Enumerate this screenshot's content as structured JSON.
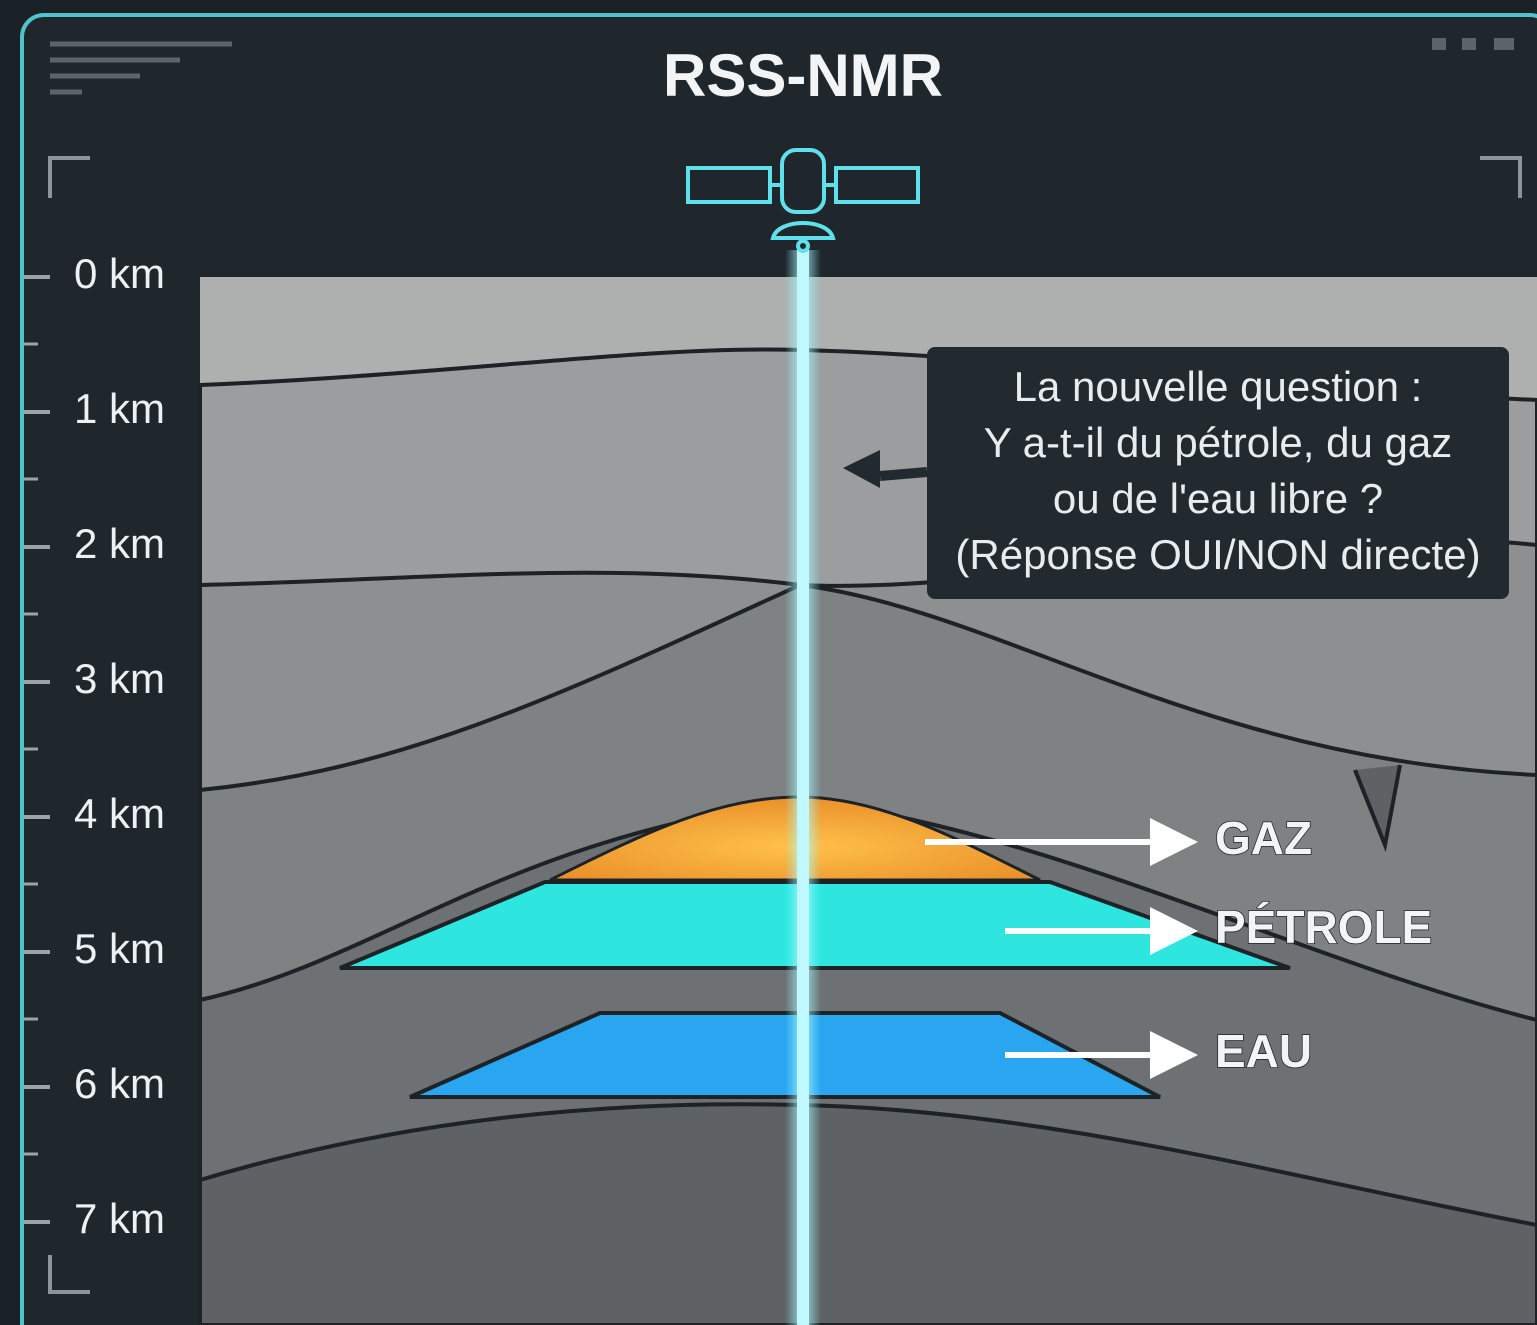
{
  "title": "RSS-NMR",
  "depth_axis": {
    "labels": [
      "0 km",
      "1 km",
      "2 km",
      "3 km",
      "4 km",
      "5 km",
      "6 km",
      "7 km"
    ]
  },
  "callout": {
    "lines": [
      "La nouvelle question :",
      "Y a-t-il du pétrole, du gaz",
      "ou de l'eau libre ?",
      "(Réponse OUI/NON directe)"
    ]
  },
  "layers": [
    {
      "label": "GAZ"
    },
    {
      "label": "PÉTROLE"
    },
    {
      "label": "EAU"
    }
  ]
}
